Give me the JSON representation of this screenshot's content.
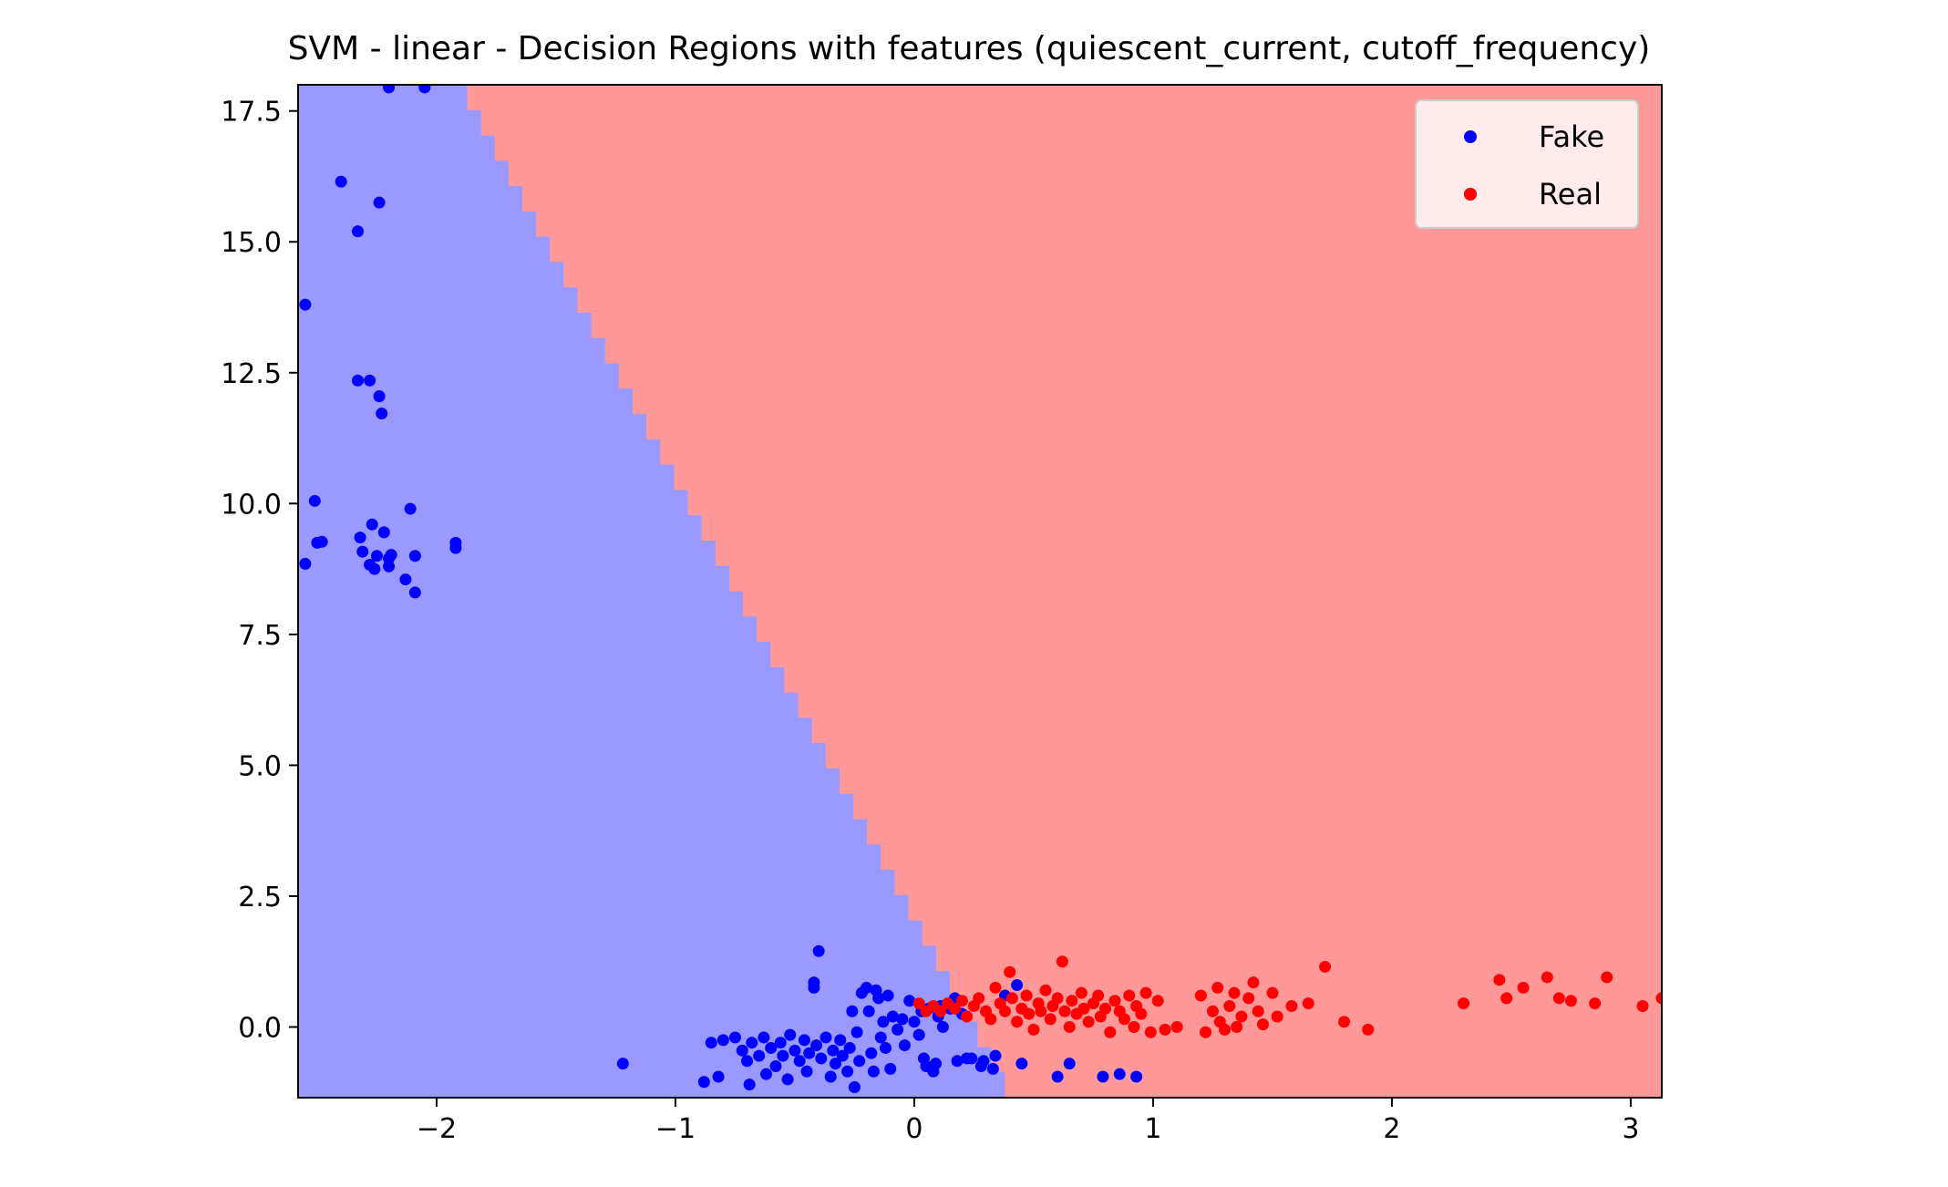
{
  "chart_data": {
    "type": "scatter",
    "title": "SVM - linear - Decision Regions with features (quiescent_current, cutoff_frequency)",
    "xlabel": "",
    "ylabel": "",
    "xlim": [
      -2.58,
      3.13
    ],
    "ylim": [
      -1.35,
      18.0
    ],
    "x_ticks": [
      -2,
      -1,
      0,
      1,
      2,
      3
    ],
    "x_tick_labels": [
      "−2",
      "−1",
      "0",
      "1",
      "2",
      "3"
    ],
    "y_ticks": [
      0.0,
      2.5,
      5.0,
      7.5,
      10.0,
      12.5,
      15.0,
      17.5
    ],
    "y_tick_labels": [
      "0.0",
      "2.5",
      "5.0",
      "7.5",
      "10.0",
      "12.5",
      "15.0",
      "17.5"
    ],
    "grid": false,
    "legend_position": "top-right",
    "region_colors": {
      "Fake": "#9999ff",
      "Real": "#ff9999"
    },
    "decision_boundary": [
      [
        -1.93,
        18.0
      ],
      [
        0.38,
        -1.35
      ]
    ],
    "series": [
      {
        "name": "Fake",
        "color": "#0000ff",
        "points": [
          [
            -2.2,
            17.95
          ],
          [
            -2.05,
            17.95
          ],
          [
            -2.4,
            16.15
          ],
          [
            -2.24,
            15.75
          ],
          [
            -2.33,
            15.2
          ],
          [
            -2.55,
            13.8
          ],
          [
            -2.33,
            12.35
          ],
          [
            -2.28,
            12.35
          ],
          [
            -2.24,
            12.05
          ],
          [
            -2.23,
            11.72
          ],
          [
            -2.51,
            10.05
          ],
          [
            -2.11,
            9.9
          ],
          [
            -2.27,
            9.6
          ],
          [
            -2.22,
            9.45
          ],
          [
            -2.48,
            9.27
          ],
          [
            -2.5,
            9.25
          ],
          [
            -2.32,
            9.35
          ],
          [
            -1.92,
            9.25
          ],
          [
            -1.92,
            9.15
          ],
          [
            -2.31,
            9.08
          ],
          [
            -2.25,
            9.0
          ],
          [
            -2.19,
            9.02
          ],
          [
            -2.2,
            8.95
          ],
          [
            -2.09,
            9.0
          ],
          [
            -2.28,
            8.83
          ],
          [
            -2.2,
            8.8
          ],
          [
            -2.26,
            8.75
          ],
          [
            -2.55,
            8.85
          ],
          [
            -2.13,
            8.55
          ],
          [
            -2.09,
            8.3
          ],
          [
            -1.22,
            -0.7
          ],
          [
            -0.88,
            -1.05
          ],
          [
            -0.85,
            -0.3
          ],
          [
            -0.82,
            -0.95
          ],
          [
            -0.8,
            -0.25
          ],
          [
            -0.75,
            -0.2
          ],
          [
            -0.72,
            -0.45
          ],
          [
            -0.7,
            -0.65
          ],
          [
            -0.69,
            -1.1
          ],
          [
            -0.68,
            -0.3
          ],
          [
            -0.65,
            -0.55
          ],
          [
            -0.63,
            -0.2
          ],
          [
            -0.62,
            -0.9
          ],
          [
            -0.6,
            -0.4
          ],
          [
            -0.58,
            -0.75
          ],
          [
            -0.56,
            -0.3
          ],
          [
            -0.55,
            -0.55
          ],
          [
            -0.53,
            -1.0
          ],
          [
            -0.52,
            -0.15
          ],
          [
            -0.5,
            -0.45
          ],
          [
            -0.48,
            -0.65
          ],
          [
            -0.46,
            -0.25
          ],
          [
            -0.45,
            -0.85
          ],
          [
            -0.44,
            -0.5
          ],
          [
            -0.42,
            0.75
          ],
          [
            -0.42,
            0.85
          ],
          [
            -0.41,
            -0.35
          ],
          [
            -0.4,
            1.45
          ],
          [
            -0.39,
            -0.6
          ],
          [
            -0.37,
            -0.2
          ],
          [
            -0.35,
            -0.95
          ],
          [
            -0.34,
            -0.45
          ],
          [
            -0.33,
            -0.7
          ],
          [
            -0.31,
            -0.25
          ],
          [
            -0.3,
            -0.55
          ],
          [
            -0.28,
            -0.85
          ],
          [
            -0.27,
            -0.4
          ],
          [
            -0.26,
            0.3
          ],
          [
            -0.25,
            -1.15
          ],
          [
            -0.24,
            -0.1
          ],
          [
            -0.23,
            -0.65
          ],
          [
            -0.22,
            0.65
          ],
          [
            -0.2,
            0.75
          ],
          [
            -0.19,
            0.3
          ],
          [
            -0.18,
            -0.5
          ],
          [
            -0.17,
            -0.85
          ],
          [
            -0.16,
            0.7
          ],
          [
            -0.15,
            0.55
          ],
          [
            -0.14,
            -0.2
          ],
          [
            -0.13,
            0.1
          ],
          [
            -0.12,
            -0.4
          ],
          [
            -0.11,
            0.6
          ],
          [
            -0.1,
            -0.8
          ],
          [
            -0.09,
            0.2
          ],
          [
            -0.07,
            -0.05
          ],
          [
            -0.05,
            0.15
          ],
          [
            -0.04,
            -0.35
          ],
          [
            -0.02,
            0.5
          ],
          [
            0.0,
            0.1
          ],
          [
            0.02,
            -0.15
          ],
          [
            0.03,
            0.3
          ],
          [
            0.04,
            -0.6
          ],
          [
            0.05,
            -0.75
          ],
          [
            0.06,
            0.35
          ],
          [
            0.08,
            -0.85
          ],
          [
            0.09,
            -0.7
          ],
          [
            0.1,
            0.2
          ],
          [
            0.11,
            0.4
          ],
          [
            0.12,
            0.0
          ],
          [
            0.15,
            0.35
          ],
          [
            0.17,
            0.55
          ],
          [
            0.18,
            -0.65
          ],
          [
            0.2,
            0.25
          ],
          [
            0.22,
            -0.6
          ],
          [
            0.24,
            -0.6
          ],
          [
            0.28,
            -0.75
          ],
          [
            0.29,
            -0.65
          ],
          [
            0.33,
            -0.8
          ],
          [
            0.34,
            -0.55
          ],
          [
            0.38,
            0.6
          ],
          [
            0.43,
            0.8
          ],
          [
            0.45,
            -0.7
          ],
          [
            0.6,
            -0.95
          ],
          [
            0.65,
            -0.7
          ],
          [
            0.79,
            -0.95
          ],
          [
            0.86,
            -0.9
          ],
          [
            0.93,
            -0.95
          ]
        ]
      },
      {
        "name": "Real",
        "color": "#ff0000",
        "points": [
          [
            0.02,
            0.45
          ],
          [
            0.05,
            0.3
          ],
          [
            0.08,
            0.4
          ],
          [
            0.11,
            0.3
          ],
          [
            0.14,
            0.45
          ],
          [
            0.17,
            0.35
          ],
          [
            0.2,
            0.5
          ],
          [
            0.22,
            0.2
          ],
          [
            0.25,
            0.4
          ],
          [
            0.27,
            0.55
          ],
          [
            0.3,
            0.3
          ],
          [
            0.32,
            0.15
          ],
          [
            0.34,
            0.75
          ],
          [
            0.36,
            0.45
          ],
          [
            0.38,
            0.3
          ],
          [
            0.4,
            1.05
          ],
          [
            0.41,
            0.55
          ],
          [
            0.43,
            0.1
          ],
          [
            0.45,
            0.35
          ],
          [
            0.47,
            0.6
          ],
          [
            0.48,
            0.25
          ],
          [
            0.5,
            -0.05
          ],
          [
            0.52,
            0.45
          ],
          [
            0.53,
            0.3
          ],
          [
            0.55,
            0.7
          ],
          [
            0.57,
            0.15
          ],
          [
            0.58,
            0.4
          ],
          [
            0.6,
            0.55
          ],
          [
            0.62,
            1.25
          ],
          [
            0.63,
            0.3
          ],
          [
            0.65,
            0.0
          ],
          [
            0.66,
            0.5
          ],
          [
            0.68,
            0.25
          ],
          [
            0.7,
            0.65
          ],
          [
            0.71,
            0.35
          ],
          [
            0.73,
            0.1
          ],
          [
            0.75,
            0.45
          ],
          [
            0.77,
            0.6
          ],
          [
            0.78,
            0.2
          ],
          [
            0.8,
            0.35
          ],
          [
            0.82,
            -0.1
          ],
          [
            0.84,
            0.5
          ],
          [
            0.86,
            0.3
          ],
          [
            0.88,
            0.15
          ],
          [
            0.9,
            0.6
          ],
          [
            0.92,
            0.0
          ],
          [
            0.93,
            0.4
          ],
          [
            0.95,
            0.25
          ],
          [
            0.97,
            0.65
          ],
          [
            0.99,
            -0.1
          ],
          [
            1.02,
            0.5
          ],
          [
            1.05,
            -0.05
          ],
          [
            1.1,
            0.0
          ],
          [
            1.2,
            0.6
          ],
          [
            1.22,
            -0.1
          ],
          [
            1.25,
            0.3
          ],
          [
            1.27,
            0.75
          ],
          [
            1.28,
            0.1
          ],
          [
            1.3,
            -0.05
          ],
          [
            1.32,
            0.4
          ],
          [
            1.34,
            0.65
          ],
          [
            1.35,
            0.0
          ],
          [
            1.37,
            0.2
          ],
          [
            1.4,
            0.55
          ],
          [
            1.42,
            0.85
          ],
          [
            1.44,
            0.3
          ],
          [
            1.46,
            0.05
          ],
          [
            1.5,
            0.65
          ],
          [
            1.52,
            0.2
          ],
          [
            1.58,
            0.4
          ],
          [
            1.65,
            0.45
          ],
          [
            1.72,
            1.15
          ],
          [
            1.8,
            0.1
          ],
          [
            1.9,
            -0.05
          ],
          [
            2.3,
            0.45
          ],
          [
            2.45,
            0.9
          ],
          [
            2.48,
            0.55
          ],
          [
            2.55,
            0.75
          ],
          [
            2.65,
            0.95
          ],
          [
            2.7,
            0.55
          ],
          [
            2.75,
            0.5
          ],
          [
            2.85,
            0.45
          ],
          [
            2.9,
            0.95
          ],
          [
            3.05,
            0.4
          ],
          [
            3.13,
            0.55
          ]
        ]
      }
    ]
  }
}
